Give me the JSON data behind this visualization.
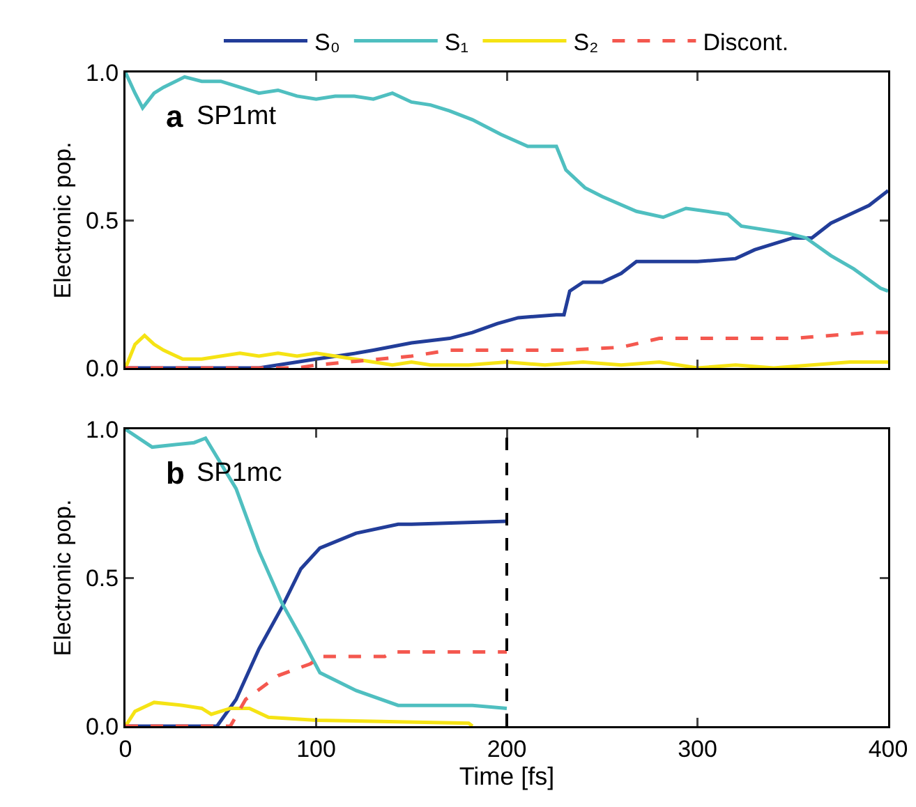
{
  "chart_data": [
    {
      "type": "line",
      "ylabel": "Electronic pop.",
      "xlim": [
        0,
        400
      ],
      "xticks": [
        0,
        100,
        200,
        300,
        400
      ],
      "ylim": [
        0,
        1
      ],
      "yticks": [
        {
          "value": 0,
          "label": "0.0"
        },
        {
          "value": 0.5,
          "label": "0.5"
        },
        {
          "value": 1,
          "label": "1.0"
        }
      ],
      "tick_labels": "y",
      "grid": false,
      "legend": "top",
      "marker": "none",
      "annotations": [
        "a",
        "SP1mt"
      ],
      "series": [
        {
          "name": "S₀",
          "color": "#223d99",
          "line_style": "solid",
          "x": [
            0,
            70,
            80,
            100,
            121,
            130,
            150,
            170,
            182,
            195,
            206,
            226,
            230,
            233,
            240,
            250,
            260,
            268,
            300,
            320,
            330,
            340,
            350,
            360,
            370,
            380,
            390,
            400
          ],
          "values": [
            0,
            0,
            0.01,
            0.03,
            0.05,
            0.06,
            0.085,
            0.1,
            0.12,
            0.15,
            0.17,
            0.18,
            0.18,
            0.26,
            0.29,
            0.29,
            0.32,
            0.36,
            0.36,
            0.37,
            0.4,
            0.42,
            0.44,
            0.44,
            0.49,
            0.52,
            0.55,
            0.6
          ]
        },
        {
          "name": "S₁",
          "color": "#4fbfc0",
          "line_style": "solid",
          "x": [
            0,
            5,
            9,
            15,
            20,
            31,
            40,
            50,
            60,
            70,
            80,
            90,
            100,
            110,
            120,
            130,
            140,
            150,
            160,
            170,
            182,
            197,
            211,
            226,
            231,
            241,
            250,
            268,
            282,
            294,
            316,
            323,
            348,
            357,
            370,
            382,
            396,
            400
          ],
          "values": [
            1,
            0.93,
            0.88,
            0.93,
            0.95,
            0.985,
            0.97,
            0.97,
            0.95,
            0.93,
            0.94,
            0.92,
            0.91,
            0.92,
            0.92,
            0.91,
            0.93,
            0.9,
            0.89,
            0.87,
            0.84,
            0.79,
            0.75,
            0.75,
            0.67,
            0.61,
            0.58,
            0.53,
            0.51,
            0.54,
            0.52,
            0.48,
            0.455,
            0.44,
            0.38,
            0.335,
            0.27,
            0.26
          ]
        },
        {
          "name": "S₂",
          "color": "#f5e314",
          "line_style": "solid",
          "x": [
            0,
            5,
            10,
            15,
            20,
            30,
            40,
            50,
            60,
            70,
            80,
            90,
            100,
            110,
            120,
            130,
            140,
            150,
            160,
            180,
            200,
            220,
            240,
            260,
            280,
            300,
            320,
            340,
            360,
            380,
            400
          ],
          "values": [
            0,
            0.08,
            0.11,
            0.08,
            0.06,
            0.03,
            0.03,
            0.04,
            0.05,
            0.04,
            0.05,
            0.04,
            0.05,
            0.04,
            0.03,
            0.02,
            0.01,
            0.02,
            0.01,
            0.01,
            0.02,
            0.01,
            0.02,
            0.01,
            0.02,
            0,
            0.01,
            0,
            0.01,
            0.02,
            0.02
          ]
        },
        {
          "name": "Discont.",
          "color": "#f4584f",
          "line_style": "dashed",
          "x": [
            0,
            90,
            100,
            150,
            170,
            230,
            260,
            280,
            350,
            390,
            400
          ],
          "values": [
            0,
            0,
            0.01,
            0.04,
            0.06,
            0.06,
            0.07,
            0.1,
            0.1,
            0.12,
            0.12
          ]
        }
      ]
    },
    {
      "type": "line",
      "xlabel": "Time [fs]",
      "ylabel": "Electronic pop.",
      "xlim": [
        0,
        400
      ],
      "xticks": [
        0,
        100,
        200,
        300,
        400
      ],
      "ylim": [
        0,
        1
      ],
      "yticks": [
        {
          "value": 0,
          "label": "0.0"
        },
        {
          "value": 0.5,
          "label": "0.5"
        },
        {
          "value": 1,
          "label": "1.0"
        }
      ],
      "grid": false,
      "marker": "none",
      "annotations": [
        "b",
        "SP1mc"
      ],
      "ref_lines": [
        {
          "axis": "x",
          "value": 200,
          "color": "#000000",
          "line_style": "dashed"
        }
      ],
      "series": [
        {
          "color": "#223d99",
          "line_style": "solid",
          "x": [
            0,
            48,
            58,
            70,
            82,
            92,
            102,
            121,
            143,
            150,
            200
          ],
          "values": [
            0,
            0,
            0.09,
            0.26,
            0.4,
            0.53,
            0.6,
            0.65,
            0.68,
            0.68,
            0.69
          ]
        },
        {
          "color": "#4fbfc0",
          "line_style": "solid",
          "x": [
            0,
            14,
            36,
            42,
            58,
            70,
            82,
            92,
            102,
            121,
            143,
            182,
            200
          ],
          "values": [
            1,
            0.94,
            0.955,
            0.97,
            0.8,
            0.59,
            0.415,
            0.3,
            0.18,
            0.12,
            0.07,
            0.07,
            0.06
          ]
        },
        {
          "color": "#f5e314",
          "line_style": "solid",
          "x": [
            0,
            5,
            15,
            30,
            40,
            45,
            55,
            65,
            75,
            100,
            180,
            182
          ],
          "values": [
            0,
            0.05,
            0.08,
            0.07,
            0.06,
            0.04,
            0.06,
            0.06,
            0.03,
            0.02,
            0.01,
            0
          ]
        },
        {
          "color": "#f4584f",
          "line_style": "dashed",
          "x": [
            0,
            55,
            63,
            80,
            97,
            102,
            136,
            140,
            200
          ],
          "values": [
            0,
            0,
            0.09,
            0.17,
            0.21,
            0.235,
            0.235,
            0.25,
            0.25
          ]
        }
      ]
    }
  ]
}
